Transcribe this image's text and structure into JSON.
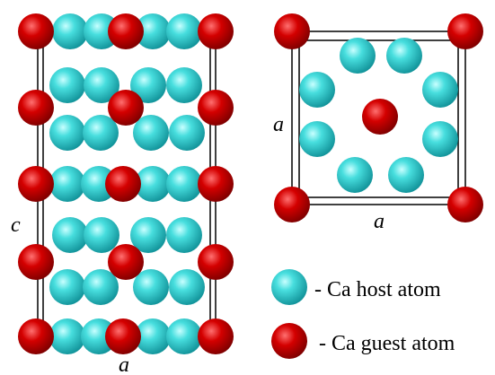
{
  "labels": {
    "left_c": "c",
    "left_a": "a",
    "right_side_a": "a",
    "right_bottom_a": "a"
  },
  "legend": {
    "host": "- Ca host atom",
    "guest": "- Ca guest atom"
  }
}
